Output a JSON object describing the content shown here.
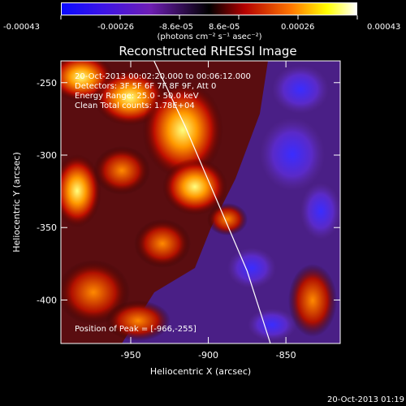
{
  "colorbar": {
    "ticks": [
      "-0.00043",
      "-0.00026",
      "-8.6e-05",
      "8.6e-05",
      "0.00026",
      "0.00043"
    ],
    "range": [
      -0.00043,
      0.00043
    ],
    "units": "(photons cm⁻² s⁻¹ asec⁻²)",
    "colors": [
      "#0a0aff",
      "#6e1eb4",
      "#000000",
      "#b40000",
      "#ff7800",
      "#ffff00",
      "#ffffff"
    ]
  },
  "overlay": {
    "time_range": "20-Oct-2013 00:02:20.000 to 00:06:12.000",
    "detectors": "Detectors: 3F 5F 6F 7F 8F 9F, Att 0",
    "energy": "Energy Range: 25.0 - 50.0 keV",
    "clean": "Clean    Total counts: 1.78E+04",
    "peak": "Position of Peak = [-966,-255]"
  },
  "footer": {
    "timestamp": "20-Oct-2013 01:19"
  },
  "chart_data": {
    "type": "heatmap",
    "title": "Reconstructed RHESSI Image",
    "xlabel": "Heliocentric X (arcsec)",
    "ylabel": "Heliocentric Y (arcsec)",
    "xlim": [
      -995,
      -815
    ],
    "ylim": [
      -430,
      -235
    ],
    "x_ticks": [
      {
        "value": -950,
        "label": "-950"
      },
      {
        "value": -900,
        "label": "-900"
      },
      {
        "value": -850,
        "label": "-850"
      }
    ],
    "y_ticks": [
      {
        "value": -250,
        "label": "-250"
      },
      {
        "value": -300,
        "label": "-300"
      },
      {
        "value": -350,
        "label": "-350"
      },
      {
        "value": -400,
        "label": "-400"
      }
    ],
    "limb_curve": [
      [
        -935,
        -235
      ],
      [
        -915,
        -280
      ],
      [
        -895,
        -330
      ],
      [
        -875,
        -380
      ],
      [
        -860,
        -430
      ]
    ],
    "peak_position": [
      -966,
      -255
    ]
  }
}
